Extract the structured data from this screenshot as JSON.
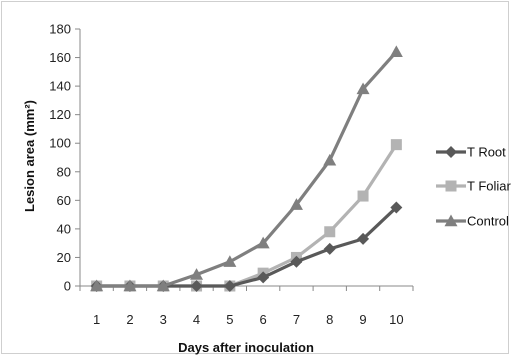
{
  "chart_data": {
    "type": "line",
    "title": "",
    "xlabel": "Days after inoculation",
    "ylabel": "Lesion area (mm²)",
    "x": [
      1,
      2,
      3,
      4,
      5,
      6,
      7,
      8,
      9,
      10
    ],
    "ylim": [
      0,
      180
    ],
    "yticks": [
      0,
      20,
      40,
      60,
      80,
      100,
      120,
      140,
      160,
      180
    ],
    "grid": false,
    "legend_position": "right",
    "series": [
      {
        "name": "T Root",
        "marker": "diamond",
        "color": "#595959",
        "values": [
          0,
          0,
          0,
          0,
          0,
          6,
          17,
          26,
          33,
          55
        ]
      },
      {
        "name": "T Foliar",
        "marker": "square",
        "color": "#b3b3b3",
        "values": [
          0,
          0,
          0,
          0,
          0,
          9,
          20,
          38,
          63,
          99
        ]
      },
      {
        "name": "Control",
        "marker": "triangle",
        "color": "#7f7f7f",
        "values": [
          0,
          0,
          0,
          8,
          17,
          30,
          57,
          88,
          138,
          164
        ]
      }
    ]
  }
}
